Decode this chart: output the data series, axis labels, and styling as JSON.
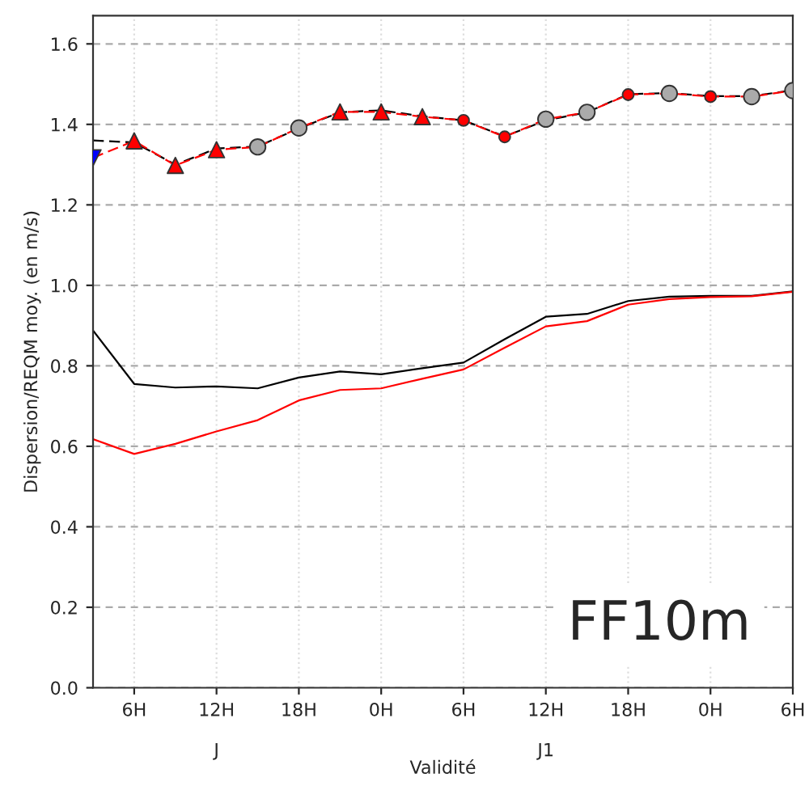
{
  "chart_data": {
    "type": "line",
    "xlabel": "Validité",
    "ylabel": "Dispersion/REQM moy. (en m/s)",
    "categories": [
      null,
      "6H",
      null,
      "12H\n\nJ",
      null,
      "18H",
      null,
      "0H",
      null,
      "6H",
      null,
      "12H\n\nJ1",
      null,
      "18H",
      null,
      "0H",
      null,
      "6H"
    ],
    "series": [
      {
        "color": "#000000",
        "line_style": "dashed",
        "marker": "none",
        "values": [
          1.36,
          1.355,
          1.3,
          1.34,
          1.345,
          1.39,
          1.43,
          1.435,
          1.42,
          1.41,
          1.37,
          1.41,
          1.43,
          1.475,
          1.478,
          1.47,
          1.47,
          1.485
        ]
      },
      {
        "color": "#ff0000",
        "line_style": "dashed",
        "marker": "none",
        "values": [
          1.317,
          1.359,
          1.298,
          1.337,
          1.344,
          1.391,
          1.431,
          1.431,
          1.419,
          1.41,
          1.369,
          1.413,
          1.43,
          1.474,
          1.477,
          1.469,
          1.469,
          1.484
        ]
      },
      {
        "type": "scatter",
        "color": "#0000ff",
        "marker": "triangle_down",
        "values": [
          1.317,
          null,
          null,
          null,
          null,
          null,
          null,
          null,
          null,
          null,
          null,
          null,
          null,
          null,
          null,
          null,
          null,
          null
        ]
      },
      {
        "type": "scatter",
        "color": "#ff0000",
        "marker": "triangle",
        "values": [
          null,
          1.359,
          1.298,
          1.337,
          null,
          null,
          1.431,
          1.431,
          1.419,
          null,
          null,
          null,
          null,
          null,
          null,
          null,
          null,
          null
        ]
      },
      {
        "type": "scatter",
        "color": "#aaaaaa",
        "marker": "circle",
        "values": [
          null,
          null,
          null,
          null,
          1.344,
          1.391,
          null,
          null,
          null,
          null,
          null,
          1.413,
          1.43,
          null,
          1.477,
          null,
          1.469,
          1.484
        ]
      },
      {
        "type": "scatter",
        "color": "#ff0000",
        "marker": "small_circle",
        "values": [
          null,
          null,
          null,
          null,
          null,
          null,
          null,
          null,
          null,
          1.41,
          1.369,
          null,
          null,
          1.474,
          null,
          1.469,
          null,
          null
        ]
      },
      {
        "color": "#000000",
        "line_style": "solid",
        "marker": "none",
        "values": [
          0.888,
          0.755,
          0.746,
          0.749,
          0.744,
          0.771,
          0.786,
          0.779,
          0.794,
          0.808,
          0.866,
          0.922,
          0.929,
          0.961,
          0.972,
          0.974,
          0.974,
          0.985
        ]
      },
      {
        "color": "#ff0000",
        "line_style": "solid",
        "marker": "none",
        "values": [
          0.618,
          0.581,
          0.606,
          0.637,
          0.665,
          0.714,
          0.74,
          0.744,
          0.768,
          0.791,
          0.845,
          0.898,
          0.911,
          0.952,
          0.966,
          0.971,
          0.973,
          0.984
        ]
      }
    ],
    "ylim": [
      0,
      1.67
    ],
    "yticks": [
      {
        "value": 0,
        "label": "0.0"
      },
      {
        "value": 0.2,
        "label": "0.2"
      },
      {
        "value": 0.4,
        "label": "0.4"
      },
      {
        "value": 0.6,
        "label": "0.6"
      },
      {
        "value": 0.8,
        "label": "0.8"
      },
      {
        "value": 1.0,
        "label": "1.0"
      },
      {
        "value": 1.2,
        "label": "1.2"
      },
      {
        "value": 1.4,
        "label": "1.4"
      },
      {
        "value": 1.6,
        "label": "1.6"
      }
    ],
    "grid": true,
    "annotations": [
      "FF10m"
    ]
  }
}
